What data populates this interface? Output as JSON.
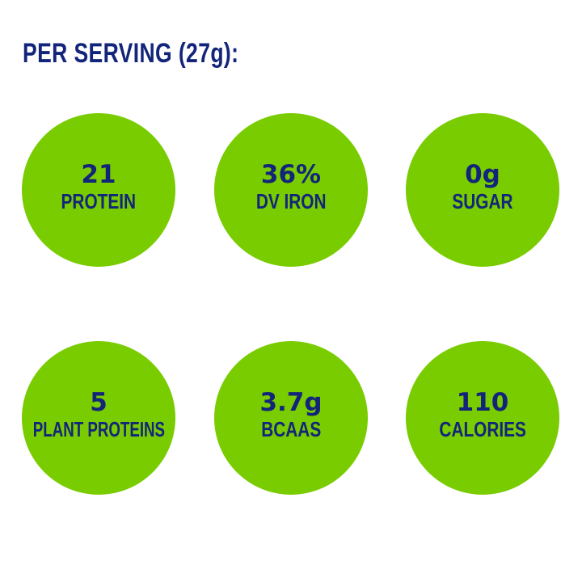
{
  "heading": "PER SERVING (27g):",
  "colors": {
    "circle": "#78cc00",
    "text": "#13257a",
    "background": "#ffffff"
  },
  "stats": [
    {
      "value": "21",
      "label": "PROTEIN"
    },
    {
      "value": "36%",
      "label": "DV IRON"
    },
    {
      "value": "0g",
      "label": "SUGAR"
    },
    {
      "value": "5",
      "label": "PLANT PROTEINS"
    },
    {
      "value": "3.7g",
      "label": "BCAAS"
    },
    {
      "value": "110",
      "label": "CALORIES"
    }
  ]
}
